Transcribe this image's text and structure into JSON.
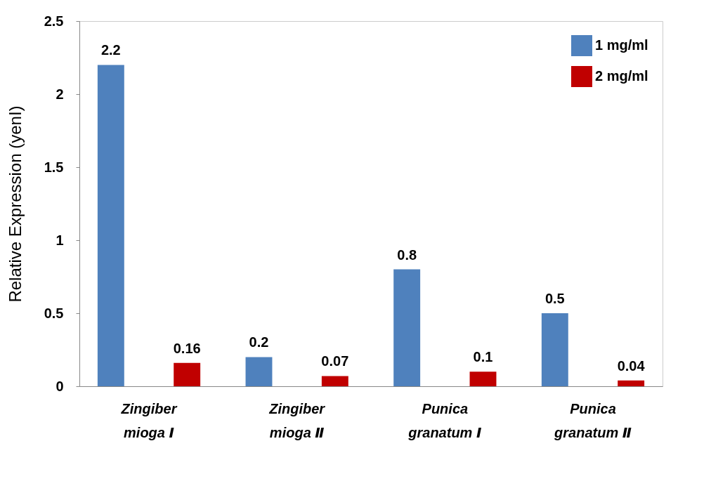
{
  "chart_data": {
    "type": "bar",
    "ylabel": "Relative Expression (yenI)",
    "categories": [
      "Zingiber mioga Ⅰ",
      "Zingiber mioga Ⅱ",
      "Punica granatum Ⅰ",
      "Punica granatum Ⅱ"
    ],
    "series": [
      {
        "name": "1 mg/ml",
        "color": "#4f81bd",
        "values": [
          2.2,
          0.2,
          0.8,
          0.5
        ]
      },
      {
        "name": "2 mg/ml",
        "color": "#c00000",
        "values": [
          0.16,
          0.07,
          0.1,
          0.04
        ]
      }
    ],
    "ylim": [
      0,
      2.5
    ],
    "yticks": [
      0,
      0.5,
      1,
      1.5,
      2,
      2.5
    ],
    "data_labels": true,
    "legend": "top right",
    "grid": false
  }
}
